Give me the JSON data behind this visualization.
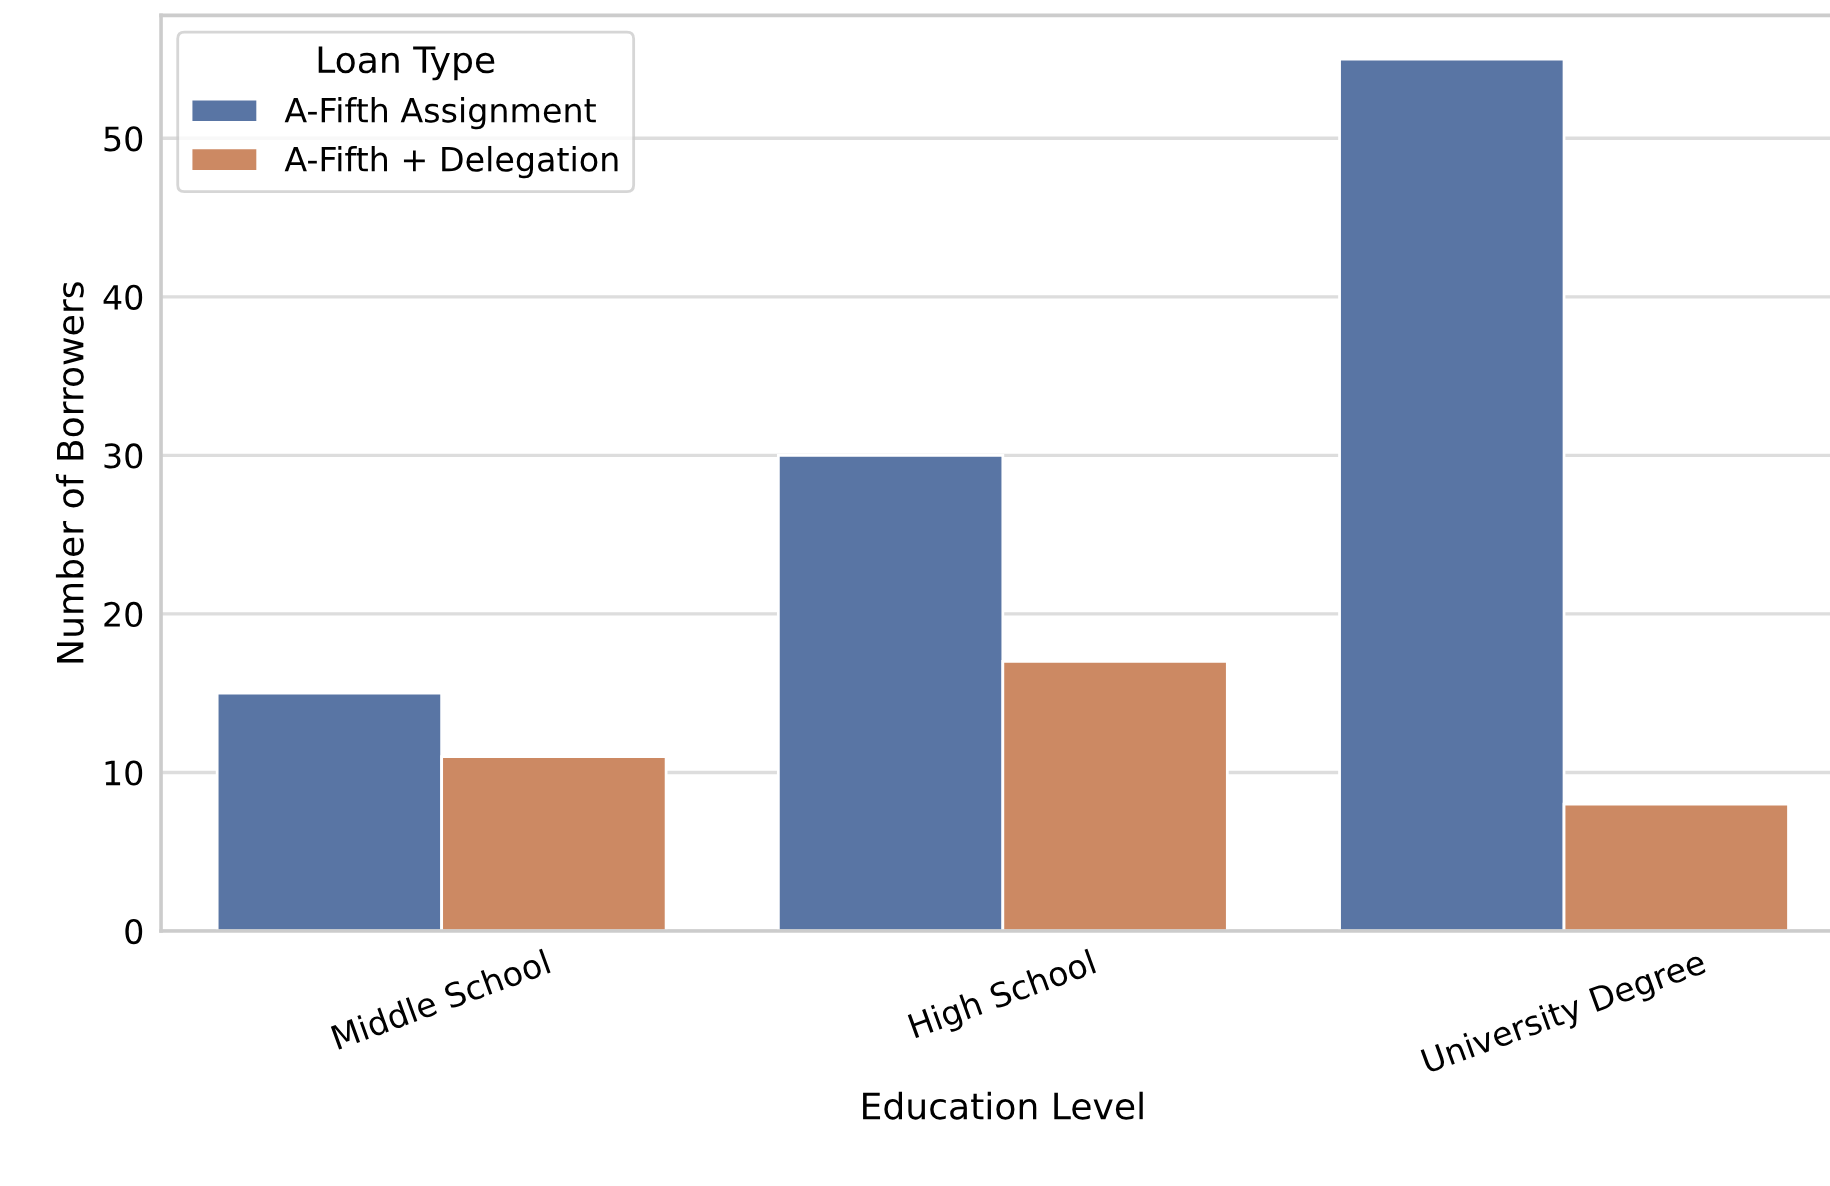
{
  "chart_data": {
    "type": "bar",
    "xlabel": "Education Level",
    "ylabel": "Number of Borrowers",
    "legend_title": "Loan Type",
    "categories": [
      "Middle School",
      "High School",
      "University Degree"
    ],
    "series": [
      {
        "name": "A-Fifth Assignment",
        "color": "#5975a4",
        "values": [
          15,
          30,
          55
        ]
      },
      {
        "name": "A-Fifth + Delegation",
        "color": "#cc8963",
        "values": [
          11,
          17,
          8
        ]
      }
    ],
    "ylim": [
      0,
      57.75
    ],
    "yticks": [
      0,
      10,
      20,
      30,
      40,
      50
    ],
    "grid": "y",
    "legend": "top left"
  }
}
